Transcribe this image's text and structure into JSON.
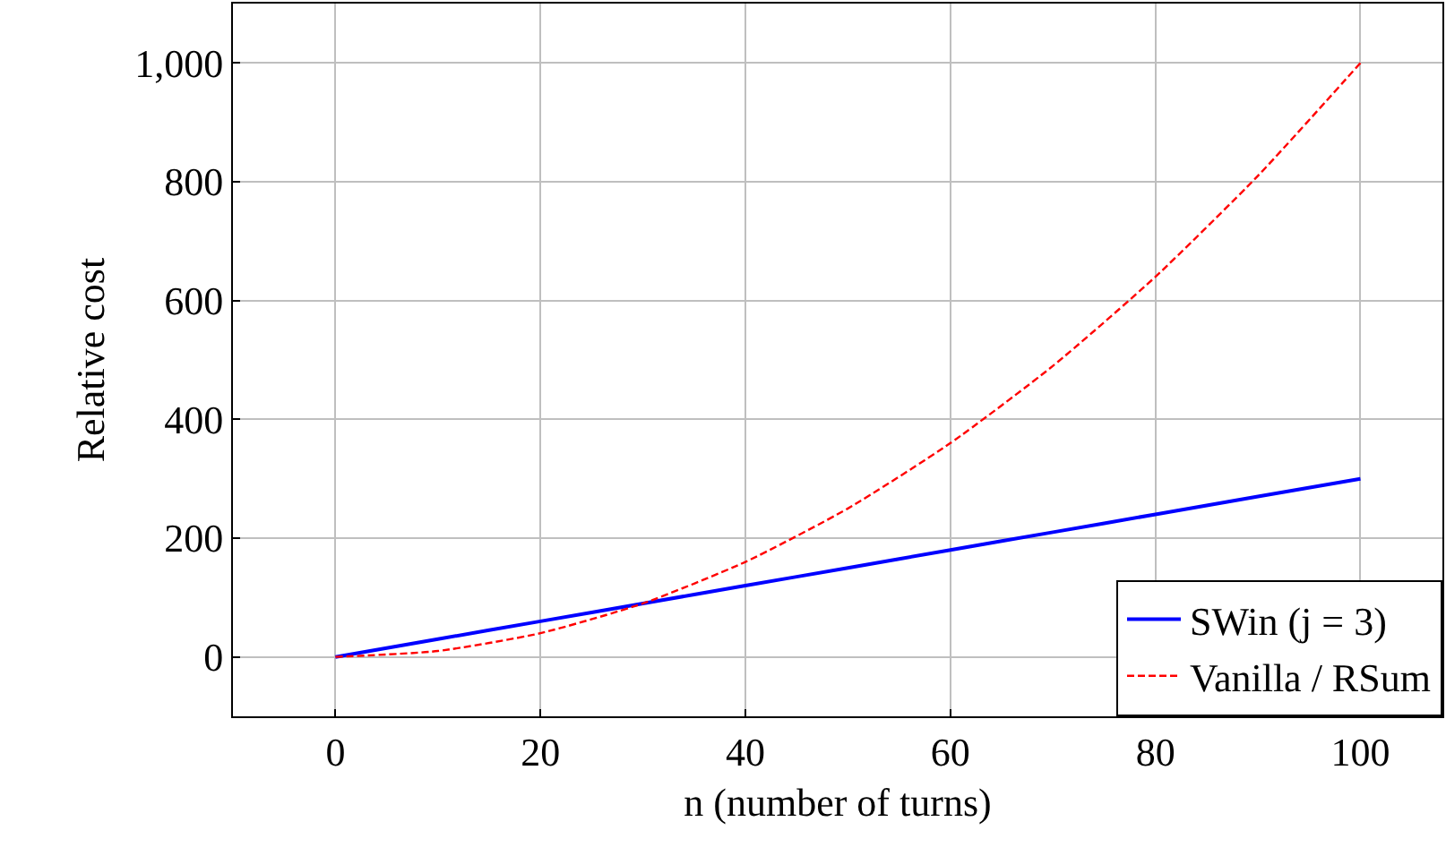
{
  "chart_data": {
    "type": "line",
    "xlabel": "n (number of turns)",
    "ylabel": "Relative cost",
    "x": [
      0,
      10,
      20,
      30,
      40,
      50,
      60,
      70,
      80,
      90,
      100
    ],
    "series": [
      {
        "name": "SWin (j = 3)",
        "color": "#0000ff",
        "values": [
          0,
          30,
          60,
          90,
          120,
          150,
          180,
          210,
          240,
          270,
          300
        ],
        "line_style": "solid"
      },
      {
        "name": "Vanilla / RSum",
        "color": "#ff0000",
        "values": [
          0,
          10,
          40,
          90,
          160,
          250,
          360,
          490,
          640,
          810,
          1000
        ],
        "line_style": "dashed"
      }
    ],
    "xlim": [
      -10,
      108
    ],
    "xticks": [
      0,
      20,
      40,
      60,
      80,
      100
    ],
    "ylim": [
      -100,
      1100
    ],
    "yticks": [
      0,
      200,
      400,
      600,
      800,
      {
        "value": 1000,
        "label": "1,000"
      }
    ],
    "grid": true,
    "legend": "bottom right",
    "marker": "none"
  }
}
